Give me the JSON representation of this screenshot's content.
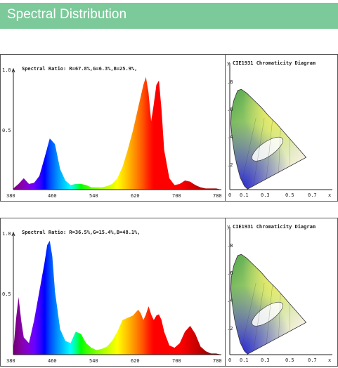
{
  "header": {
    "title": "Spectral Distribution"
  },
  "charts": [
    {
      "spectral_ratio": "Spectral Ratio:  R=67.8%,G=6.3%,B=25.9%,",
      "cie_title": "CIE1931 Chromaticity Diagram"
    },
    {
      "spectral_ratio": "Spectral Ratio:  R=36.5%,G=15.4%,B=48.1%,",
      "cie_title": "CIE1931 Chromaticity Diagram"
    }
  ],
  "axes": {
    "y_ticks": [
      "1.0",
      "0.5"
    ],
    "x_ticks": [
      "380",
      "460",
      "540",
      "620",
      "700",
      "780"
    ],
    "cie_y_label": "y",
    "cie_x_label": "x",
    "cie_y_ticks": [
      ".8",
      ".6",
      ".4",
      ".2"
    ],
    "cie_x_ticks": [
      "0",
      "0.1",
      "0.3",
      "0.5",
      "0.7"
    ]
  },
  "chart_data": [
    {
      "type": "area",
      "xlim": [
        380,
        780
      ],
      "ylim": [
        0,
        1.0
      ],
      "x": [
        380,
        390,
        400,
        410,
        420,
        430,
        440,
        450,
        460,
        470,
        480,
        490,
        500,
        510,
        520,
        530,
        540,
        550,
        560,
        570,
        580,
        590,
        600,
        610,
        620,
        630,
        635,
        640,
        645,
        650,
        655,
        660,
        665,
        670,
        680,
        690,
        700,
        710,
        720,
        730,
        740,
        750,
        760,
        770,
        780
      ],
      "values": [
        0.01,
        0.05,
        0.1,
        0.05,
        0.06,
        0.12,
        0.28,
        0.45,
        0.4,
        0.18,
        0.08,
        0.04,
        0.05,
        0.05,
        0.04,
        0.02,
        0.02,
        0.02,
        0.03,
        0.05,
        0.1,
        0.2,
        0.35,
        0.52,
        0.72,
        0.92,
        0.99,
        0.85,
        0.6,
        0.75,
        0.92,
        0.96,
        0.7,
        0.35,
        0.1,
        0.04,
        0.05,
        0.08,
        0.07,
        0.04,
        0.02,
        0.01,
        0.01,
        0.01,
        0.0
      ]
    },
    {
      "type": "area",
      "xlim": [
        380,
        780
      ],
      "ylim": [
        0,
        1.0
      ],
      "x": [
        380,
        385,
        390,
        395,
        400,
        410,
        420,
        430,
        440,
        445,
        450,
        455,
        460,
        470,
        480,
        490,
        500,
        510,
        520,
        530,
        540,
        550,
        560,
        570,
        580,
        590,
        600,
        610,
        620,
        625,
        630,
        635,
        640,
        645,
        650,
        655,
        660,
        665,
        670,
        680,
        690,
        700,
        710,
        720,
        730,
        740,
        750,
        760,
        770,
        780
      ],
      "values": [
        0.04,
        0.3,
        0.5,
        0.3,
        0.15,
        0.1,
        0.3,
        0.55,
        0.8,
        0.95,
        0.99,
        0.85,
        0.55,
        0.22,
        0.12,
        0.1,
        0.2,
        0.18,
        0.1,
        0.06,
        0.04,
        0.05,
        0.07,
        0.12,
        0.2,
        0.3,
        0.32,
        0.34,
        0.39,
        0.36,
        0.3,
        0.35,
        0.42,
        0.35,
        0.3,
        0.34,
        0.35,
        0.3,
        0.2,
        0.08,
        0.06,
        0.1,
        0.2,
        0.25,
        0.18,
        0.07,
        0.03,
        0.01,
        0.01,
        0.0
      ]
    }
  ]
}
